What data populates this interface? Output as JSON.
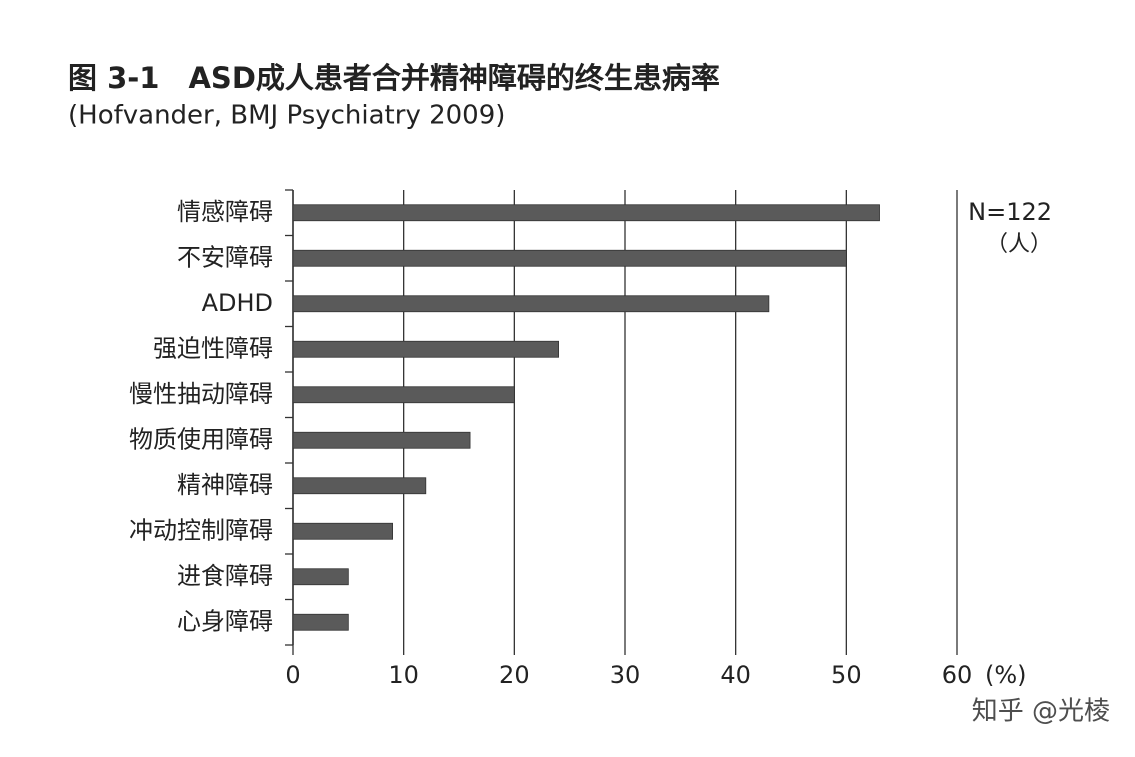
{
  "chart_data": {
    "type": "bar",
    "orientation": "horizontal",
    "title": "图 3-1　ASD成人患者合并精神障碍的终生患病率",
    "subtitle": "(Hofvander, BMJ Psychiatry 2009)",
    "x_label": "(%)",
    "annotations": [
      "N=122",
      "（人）"
    ],
    "watermark": "知乎 @光棱",
    "categories": [
      "情感障碍",
      "不安障碍",
      "ADHD",
      "强迫性障碍",
      "慢性抽动障碍",
      "物质使用障碍",
      "精神障碍",
      "冲动控制障碍",
      "进食障碍",
      "心身障碍"
    ],
    "values": [
      53,
      50,
      43,
      24,
      20,
      16,
      12,
      9,
      5,
      5
    ],
    "color": "#5a5a5a",
    "xlim": [
      0,
      60
    ],
    "xticks": [
      0,
      10,
      20,
      30,
      40,
      50,
      60
    ],
    "grid": true
  }
}
